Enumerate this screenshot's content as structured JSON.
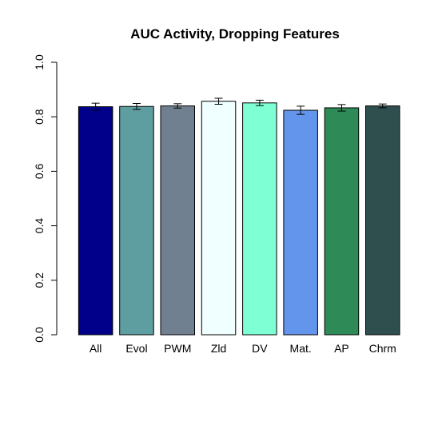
{
  "chart_data": {
    "type": "bar",
    "title": "AUC Activity, Dropping Features",
    "xlabel": "",
    "ylabel": "",
    "ylim": [
      0,
      1
    ],
    "yticks": [
      "0.0",
      "0.2",
      "0.4",
      "0.6",
      "0.8",
      "1.0"
    ],
    "grid": false,
    "legend": "none",
    "categories": [
      "All",
      "Evol",
      "PWM",
      "Zld",
      "DV",
      "Mat.",
      "AP",
      "Chrm"
    ],
    "values": [
      0.837,
      0.838,
      0.84,
      0.857,
      0.851,
      0.824,
      0.833,
      0.84
    ],
    "error": [
      0.013,
      0.011,
      0.008,
      0.011,
      0.01,
      0.015,
      0.012,
      0.007
    ],
    "colors": [
      "#00008B",
      "#5F9EA0",
      "#708090",
      "#F0FFFF",
      "#7FFFD4",
      "#6495ED",
      "#2E8B57",
      "#2F4F4F"
    ]
  }
}
